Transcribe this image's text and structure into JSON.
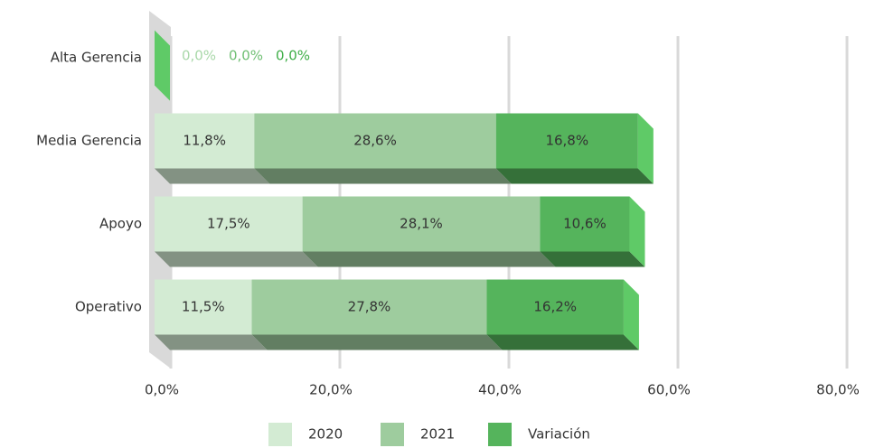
{
  "chart_data": {
    "type": "bar3d_stacked_horizontal",
    "categories": [
      "Alta Gerencia",
      "Media Gerencia",
      "Apoyo",
      "Operativo"
    ],
    "series": [
      {
        "name": "2020",
        "color": "#d3ebd3",
        "label_color": "#a9d8a9",
        "values": [
          0,
          11.8,
          17.5,
          11.5
        ],
        "value_labels": [
          "0,0%",
          "11,8%",
          "17,5%",
          "11,5%"
        ]
      },
      {
        "name": "2021",
        "color": "#9ecc9e",
        "label_color": "#6fbf73",
        "values": [
          0,
          28.6,
          28.1,
          27.8
        ],
        "value_labels": [
          "0,0%",
          "28,6%",
          "28,1%",
          "27,8%"
        ]
      },
      {
        "name": "Variación",
        "color": "#55b45c",
        "label_color": "#3fae48",
        "values": [
          0,
          16.8,
          10.6,
          16.2
        ],
        "value_labels": [
          "0,0%",
          "16,8%",
          "10,6%",
          "16,2%"
        ]
      }
    ],
    "xlim": [
      0,
      80
    ],
    "xticks": [
      {
        "value": 0,
        "label": "0,0%"
      },
      {
        "value": 20,
        "label": "20,0%"
      },
      {
        "value": 40,
        "label": "40,0%"
      },
      {
        "value": 60,
        "label": "60,0%"
      },
      {
        "value": 80,
        "label": "80,0%"
      }
    ],
    "grid": true,
    "legend": "bottom"
  }
}
